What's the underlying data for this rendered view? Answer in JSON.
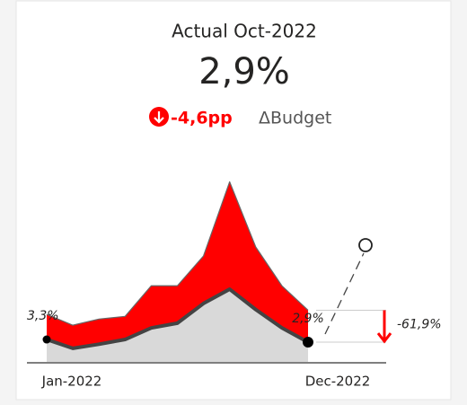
{
  "chart_data": {
    "type": "area",
    "title": "Actual Oct-2022",
    "value": 2.9,
    "value_label": "2,9%",
    "delta": -4.6,
    "delta_label": "-4,6pp",
    "delta_caption": "ΔBudget",
    "delta_pct": -61.9,
    "delta_pct_label": "-61,9%",
    "categories": [
      "Jan-2022",
      null,
      null,
      null,
      null,
      null,
      null,
      null,
      null,
      null,
      null,
      "Dec-2022"
    ],
    "ylim": [
      0,
      30
    ],
    "series": [
      {
        "name": "Budget",
        "color": "#ff0000",
        "values": [
          7.0,
          5.4,
          6.3,
          6.7,
          11.2,
          11.2,
          15.6,
          26.5,
          16.9,
          11.2,
          7.6,
          null
        ]
      },
      {
        "name": "Actual",
        "color": "#d9d9d9",
        "values": [
          3.3,
          2.0,
          2.6,
          3.3,
          5.0,
          5.7,
          8.6,
          10.7,
          7.7,
          5.0,
          2.9,
          null
        ],
        "value_labels": [
          "3,3%",
          null,
          null,
          null,
          null,
          null,
          null,
          null,
          null,
          null,
          "2,9%",
          null
        ]
      }
    ]
  }
}
